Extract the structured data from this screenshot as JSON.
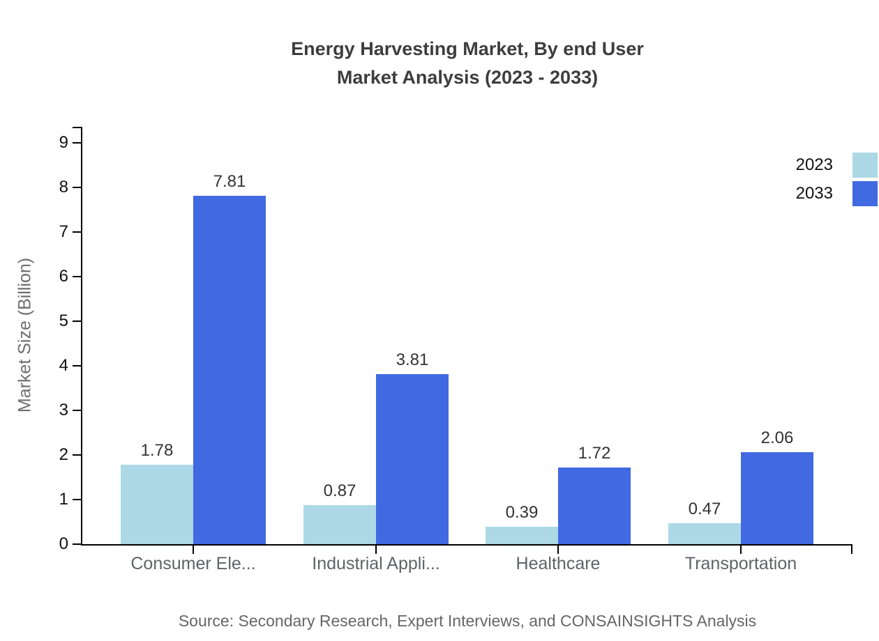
{
  "chart_data": {
    "type": "bar",
    "title": "Energy Harvesting Market, By end User Market Analysis (2023 - 2033)",
    "title_lines": [
      "Energy Harvesting Market, By end User",
      "Market Analysis (2023 - 2033)"
    ],
    "categories": [
      "Consumer Ele...",
      "Industrial Appli...",
      "Healthcare",
      "Transportation"
    ],
    "series": [
      {
        "name": "2023",
        "color": "#add8e6",
        "values": [
          1.78,
          0.87,
          0.39,
          0.47
        ]
      },
      {
        "name": "2033",
        "color": "#4169e1",
        "values": [
          7.81,
          3.81,
          1.72,
          2.06
        ]
      }
    ],
    "xlabel": "",
    "ylabel": "Market Size (Billion)",
    "ylim": [
      0,
      9.36
    ],
    "yticks": [
      0,
      1,
      2,
      3,
      4,
      5,
      6,
      7,
      8,
      9
    ],
    "grid": false,
    "legend_position": "top-right",
    "value_label_format": "0.00",
    "axis_color": "#000000"
  },
  "source": "Source: Secondary Research, Expert Interviews, and CONSAINSIGHTS Analysis"
}
